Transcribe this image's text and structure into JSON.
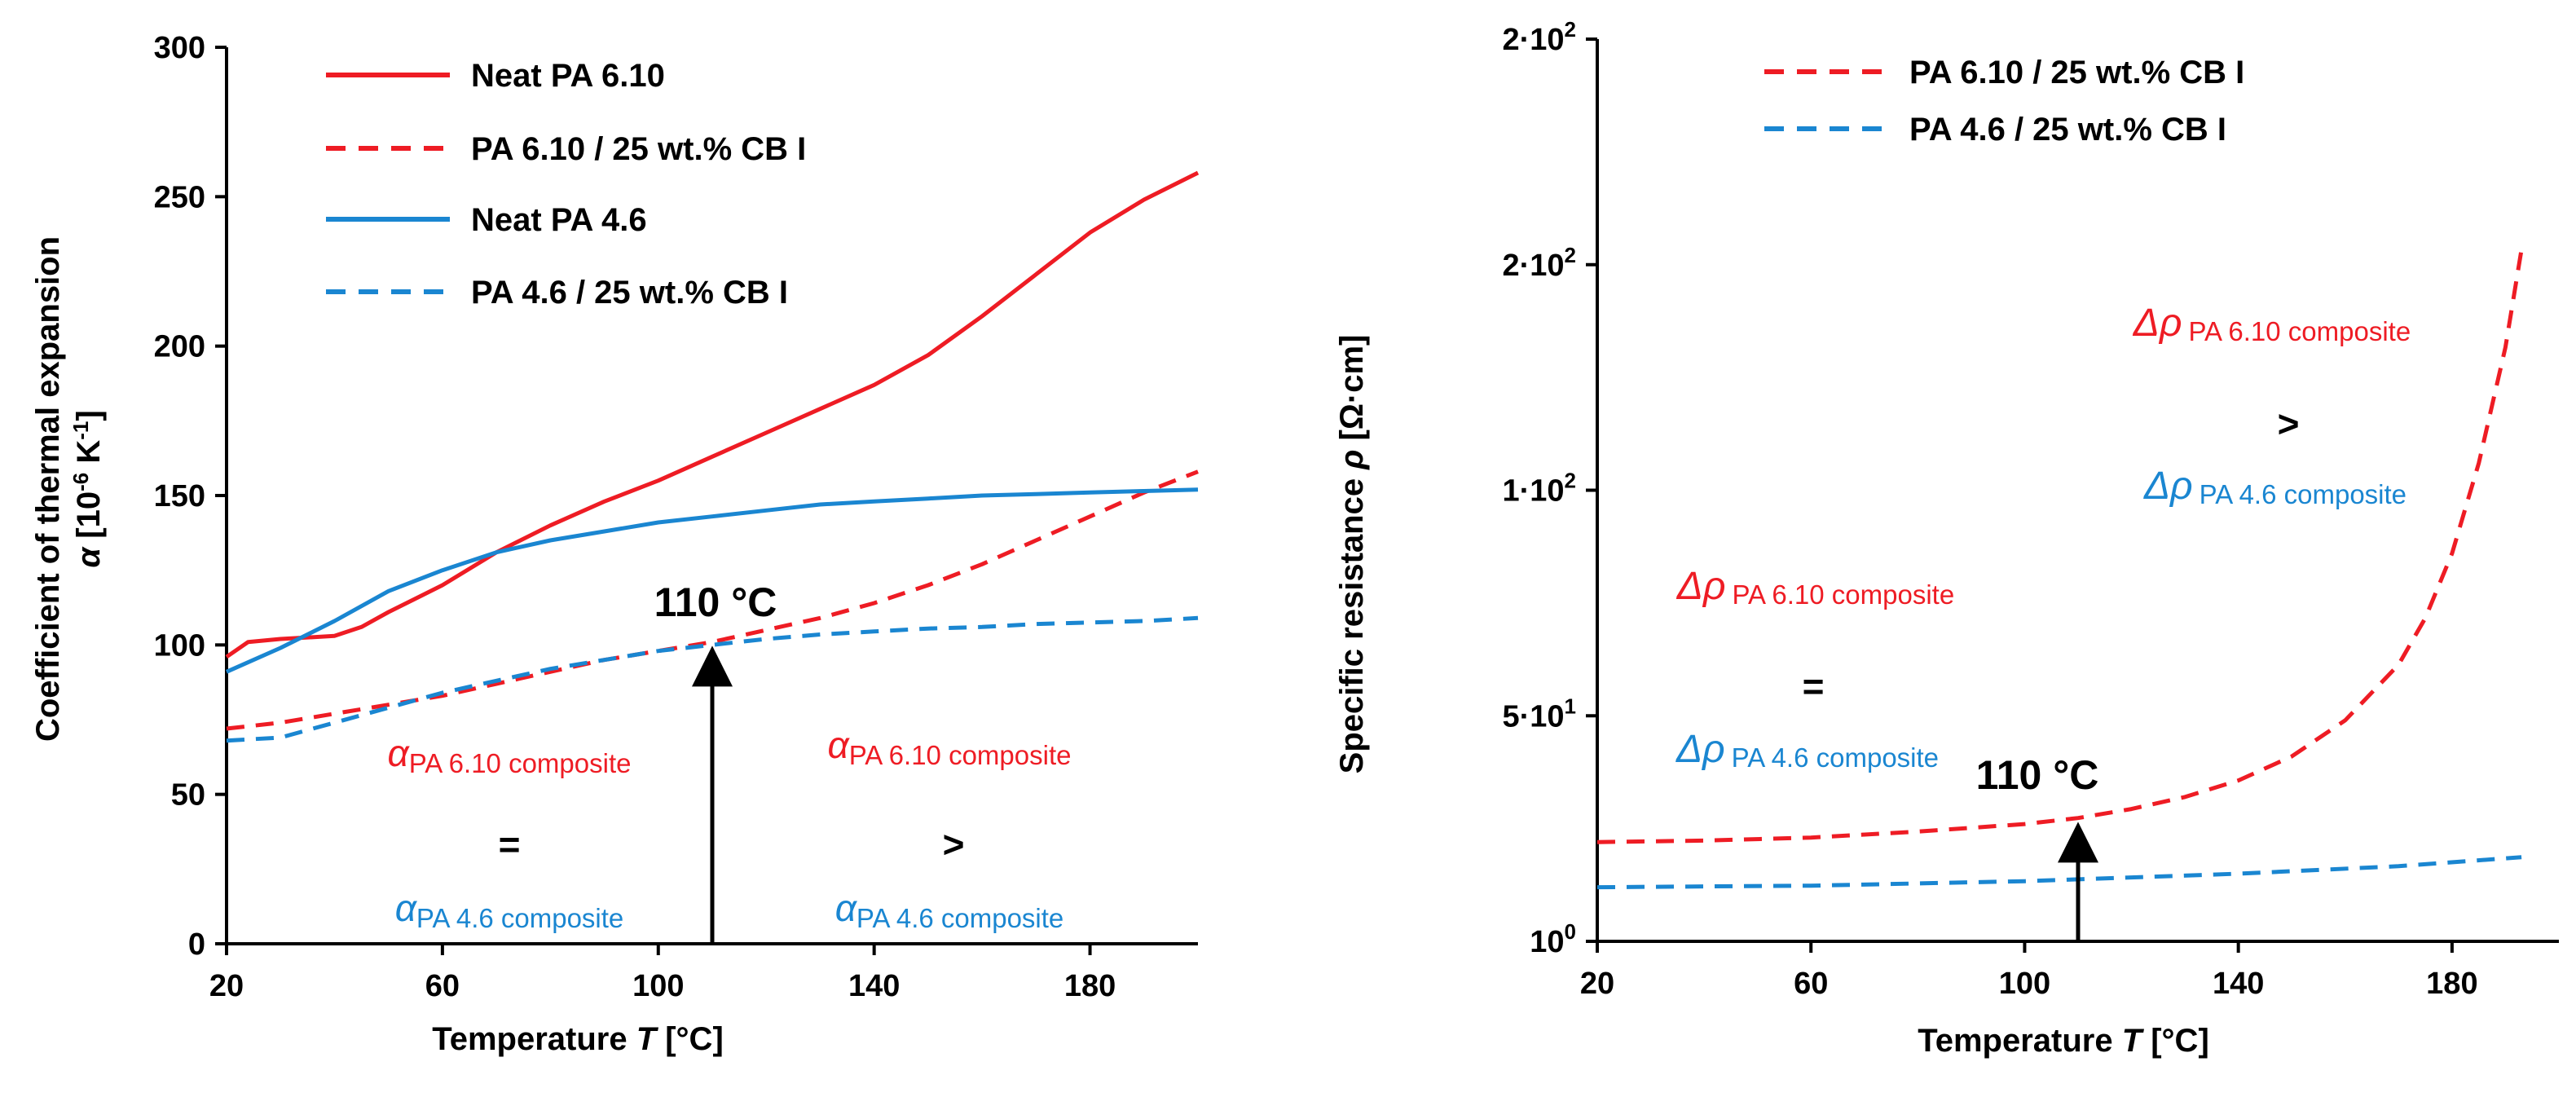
{
  "colors": {
    "red": "#ee1c24",
    "blue": "#1a86d1",
    "black": "#000000"
  },
  "chart_data": [
    {
      "type": "line",
      "xlabel_prefix": "Temperature ",
      "xlabel_symbol": "T",
      "xlabel_suffix": " [°C]",
      "ylabel_line1": "Coefficient of thermal expansion",
      "ylabel_symbol": "α",
      "ylabel_unit_pre": " [10",
      "ylabel_unit_exp1": "-6",
      "ylabel_unit_mid": " K",
      "ylabel_unit_exp2": "-1",
      "ylabel_unit_post": "]",
      "xlim": [
        20,
        200
      ],
      "ylim": [
        0,
        300
      ],
      "x_ticks": [
        {
          "value": 20,
          "label": "20"
        },
        {
          "value": 60,
          "label": "60"
        },
        {
          "value": 100,
          "label": "100"
        },
        {
          "value": 140,
          "label": "140"
        },
        {
          "value": 180,
          "label": "180"
        }
      ],
      "y_ticks": [
        {
          "value": 0,
          "label": "0"
        },
        {
          "value": 50,
          "label": "50"
        },
        {
          "value": 100,
          "label": "100"
        },
        {
          "value": 150,
          "label": "150"
        },
        {
          "value": 200,
          "label": "200"
        },
        {
          "value": 250,
          "label": "250"
        },
        {
          "value": 300,
          "label": "300"
        }
      ],
      "series": [
        {
          "name": "Neat PA 6.10",
          "color": "red",
          "dash": false,
          "x": [
            20,
            24,
            30,
            40,
            45,
            50,
            60,
            70,
            80,
            90,
            100,
            110,
            120,
            130,
            140,
            150,
            160,
            170,
            180,
            190,
            200
          ],
          "y": [
            96,
            101,
            102,
            103,
            106,
            111,
            120,
            131,
            140,
            148,
            155,
            163,
            171,
            179,
            187,
            197,
            210,
            224,
            238,
            249,
            258
          ]
        },
        {
          "name": "PA 6.10 / 25 wt.%  CB I",
          "color": "red",
          "dash": true,
          "x": [
            20,
            30,
            40,
            50,
            60,
            70,
            80,
            90,
            100,
            110,
            120,
            130,
            140,
            150,
            160,
            170,
            180,
            190,
            200
          ],
          "y": [
            72,
            74,
            77,
            80,
            83,
            87,
            91,
            95,
            98,
            101,
            105,
            109,
            114,
            120,
            127,
            135,
            143,
            151,
            158
          ]
        },
        {
          "name": "Neat PA 4.6",
          "color": "blue",
          "dash": false,
          "x": [
            20,
            30,
            40,
            50,
            60,
            70,
            80,
            90,
            100,
            110,
            120,
            130,
            140,
            150,
            160,
            170,
            180,
            190,
            200
          ],
          "y": [
            91,
            99,
            108,
            118,
            125,
            131,
            135,
            138,
            141,
            143,
            145,
            147,
            148,
            149,
            150,
            150.5,
            151,
            151.5,
            152
          ]
        },
        {
          "name": "PA 4.6 / 25 wt.%  CB I",
          "color": "blue",
          "dash": true,
          "x": [
            20,
            30,
            40,
            50,
            60,
            70,
            80,
            90,
            100,
            110,
            120,
            130,
            140,
            150,
            160,
            170,
            180,
            190,
            200
          ],
          "y": [
            68,
            69,
            74,
            79,
            84,
            88,
            92,
            95,
            98,
            100,
            102,
            103.5,
            104.5,
            105.5,
            106,
            107,
            107.5,
            108,
            109
          ]
        }
      ],
      "annotation": {
        "label": "110 °C",
        "x": 110,
        "y_from": 0,
        "y_to": 100
      },
      "comparison": {
        "left": {
          "top_sym": "α",
          "top_sub": "PA 6.10 composite",
          "op": "=",
          "bot_sym": "α",
          "bot_sub": "PA 4.6 composite"
        },
        "right": {
          "top_sym": "α",
          "top_sub": "PA 6.10 composite",
          "op": ">",
          "bot_sym": "α",
          "bot_sub": "PA 4.6 composite"
        }
      }
    },
    {
      "type": "line",
      "xlabel_prefix": "Temperature ",
      "xlabel_symbol": "T",
      "xlabel_suffix": " [°C]",
      "ylabel_prefix": "Specific resistance ",
      "ylabel_symbol": "ρ",
      "ylabel_suffix": " [Ω·cm]",
      "xlim": [
        20,
        200
      ],
      "ylim": [
        0,
        6
      ],
      "x_ticks": [
        {
          "value": 20,
          "label": "20"
        },
        {
          "value": 60,
          "label": "60"
        },
        {
          "value": 100,
          "label": "100"
        },
        {
          "value": 140,
          "label": "140"
        },
        {
          "value": 180,
          "label": "180"
        }
      ],
      "y_ticks": [
        {
          "value": 0,
          "base": "10",
          "exp": "0"
        },
        {
          "value": 1.5,
          "base": "5·10",
          "exp": "1"
        },
        {
          "value": 3,
          "base": "1·10",
          "exp": "2"
        },
        {
          "value": 4.5,
          "base": "2·10",
          "exp": "2"
        },
        {
          "value": 6,
          "base": "2·10",
          "exp": "2"
        }
      ],
      "series": [
        {
          "name": "PA 6.10 / 25 wt.%  CB I",
          "color": "red",
          "dash": true,
          "x": [
            20,
            40,
            60,
            80,
            100,
            110,
            120,
            130,
            140,
            150,
            160,
            170,
            175,
            180,
            185,
            190,
            193
          ],
          "y": [
            0.66,
            0.67,
            0.69,
            0.73,
            0.78,
            0.82,
            0.88,
            0.96,
            1.07,
            1.23,
            1.47,
            1.84,
            2.15,
            2.58,
            3.18,
            3.95,
            4.6
          ]
        },
        {
          "name": "PA 4.6  / 25 wt.%  CB I",
          "color": "blue",
          "dash": true,
          "x": [
            20,
            60,
            100,
            140,
            170,
            193
          ],
          "y": [
            0.36,
            0.37,
            0.4,
            0.45,
            0.5,
            0.56
          ]
        }
      ],
      "annotation": {
        "label": "110 °C",
        "x": 110,
        "y_from": 0,
        "y_to": 0.8
      },
      "comparison": {
        "left": {
          "top_sym": "Δρ",
          "top_sub": "PA 6.10 composite",
          "op": "=",
          "bot_sym": "Δρ",
          "bot_sub": "PA 4.6 composite"
        },
        "right": {
          "top_sym": "Δρ",
          "top_sub": "PA 6.10 composite",
          "op": ">",
          "bot_sym": "Δρ",
          "bot_sub": "PA 4.6 composite"
        }
      }
    }
  ]
}
